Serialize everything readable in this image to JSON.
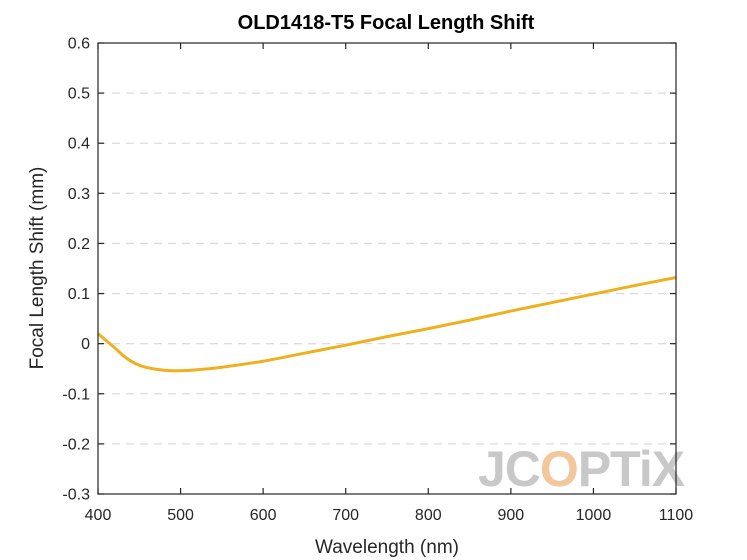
{
  "chart_data": {
    "type": "line",
    "title": "OLD1418-T5 Focal Length Shift",
    "xlabel": "Wavelength (nm)",
    "ylabel": "Focal Length Shift (mm)",
    "xlim": [
      400,
      1100
    ],
    "ylim": [
      -0.3,
      0.6
    ],
    "xticks": [
      400,
      500,
      600,
      700,
      800,
      900,
      1000,
      1100
    ],
    "yticks": [
      -0.3,
      -0.2,
      -0.1,
      0,
      0.1,
      0.2,
      0.3,
      0.4,
      0.5,
      0.6
    ],
    "xtick_labels": [
      "400",
      "500",
      "600",
      "700",
      "800",
      "900",
      "1000",
      "1100"
    ],
    "ytick_labels": [
      "-0.3",
      "-0.2",
      "-0.1",
      "0",
      "0.1",
      "0.2",
      "0.3",
      "0.4",
      "0.5",
      "0.6"
    ],
    "grid": "horizontal-dashed",
    "series": [
      {
        "color": "#edb120",
        "x": [
          400,
          410,
          420,
          430,
          440,
          450,
          460,
          470,
          480,
          490,
          500,
          520,
          550,
          600,
          650,
          700,
          750,
          800,
          850,
          900,
          950,
          1000,
          1050,
          1100
        ],
        "y": [
          0.02,
          0.006,
          -0.008,
          -0.023,
          -0.035,
          -0.043,
          -0.048,
          -0.051,
          -0.053,
          -0.054,
          -0.054,
          -0.052,
          -0.047,
          -0.035,
          -0.019,
          -0.003,
          0.014,
          0.03,
          0.047,
          0.065,
          0.082,
          0.099,
          0.116,
          0.132
        ]
      }
    ]
  },
  "watermark": {
    "text_before": "JC",
    "text_accent": "O",
    "text_after": "PTiX",
    "color": "#c8c8c8",
    "accent_color": "#f1c79b"
  }
}
